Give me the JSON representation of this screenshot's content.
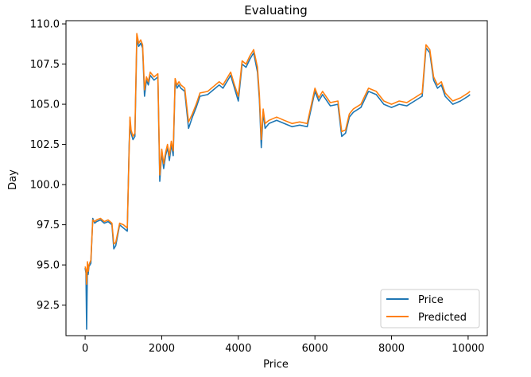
{
  "chart_data": {
    "type": "line",
    "title": "Evaluating",
    "xlabel": "Price",
    "ylabel": "Day",
    "xlim": [
      -500,
      10500
    ],
    "ylim": [
      90.6,
      110.2
    ],
    "x_ticks": [
      0,
      2000,
      4000,
      6000,
      8000,
      10000
    ],
    "y_ticks": [
      92.5,
      95.0,
      97.5,
      100.0,
      102.5,
      105.0,
      107.5,
      110.0
    ],
    "x_tick_labels": [
      "0",
      "2000",
      "4000",
      "6000",
      "8000",
      "10000"
    ],
    "y_tick_labels": [
      "92.5",
      "95.0",
      "97.5",
      "100.0",
      "102.5",
      "105.0",
      "107.5",
      "110.0"
    ],
    "grid": false,
    "legend_position": "lower-right",
    "series": [
      {
        "name": "Price",
        "color": "#1f77b4",
        "x": [
          0,
          20,
          40,
          60,
          80,
          100,
          150,
          200,
          250,
          300,
          400,
          500,
          600,
          700,
          750,
          800,
          900,
          1000,
          1100,
          1150,
          1170,
          1200,
          1250,
          1300,
          1350,
          1400,
          1450,
          1500,
          1550,
          1600,
          1650,
          1700,
          1800,
          1900,
          1950,
          2000,
          2050,
          2100,
          2150,
          2200,
          2250,
          2300,
          2350,
          2400,
          2450,
          2500,
          2600,
          2700,
          2800,
          2900,
          3000,
          3200,
          3400,
          3500,
          3600,
          3700,
          3800,
          3900,
          4000,
          4100,
          4200,
          4300,
          4400,
          4500,
          4550,
          4600,
          4650,
          4700,
          4800,
          5000,
          5200,
          5400,
          5600,
          5800,
          6000,
          6100,
          6200,
          6400,
          6600,
          6700,
          6800,
          6900,
          7000,
          7200,
          7400,
          7600,
          7800,
          8000,
          8200,
          8400,
          8600,
          8800,
          8900,
          9000,
          9100,
          9200,
          9300,
          9400,
          9600,
          9800,
          10000,
          10050
        ],
        "values": [
          94.8,
          94.5,
          91.0,
          94.9,
          94.4,
          94.9,
          95.1,
          97.9,
          97.6,
          97.7,
          97.8,
          97.6,
          97.7,
          97.5,
          96.0,
          96.2,
          97.5,
          97.3,
          97.1,
          102.5,
          104.0,
          103.2,
          102.8,
          103.0,
          109.0,
          108.6,
          108.8,
          108.5,
          105.5,
          106.5,
          106.2,
          106.8,
          106.5,
          106.7,
          100.2,
          102.0,
          101.0,
          101.8,
          102.3,
          101.5,
          102.5,
          101.8,
          106.4,
          106.0,
          106.2,
          106.0,
          105.8,
          103.5,
          104.2,
          104.8,
          105.5,
          105.6,
          106.0,
          106.2,
          106.0,
          106.4,
          106.8,
          106.0,
          105.2,
          107.5,
          107.3,
          107.8,
          108.2,
          107.0,
          105.3,
          102.3,
          104.5,
          103.5,
          103.8,
          104.0,
          103.8,
          103.6,
          103.7,
          103.6,
          105.8,
          105.2,
          105.6,
          104.9,
          105.0,
          103.0,
          103.2,
          104.2,
          104.5,
          104.8,
          105.8,
          105.6,
          105.0,
          104.8,
          105.0,
          104.9,
          105.2,
          105.5,
          108.5,
          108.2,
          106.5,
          106.0,
          106.2,
          105.5,
          105.0,
          105.2,
          105.5,
          105.6
        ]
      },
      {
        "name": "Predicted",
        "color": "#ff7f0e",
        "x": [
          0,
          20,
          40,
          60,
          80,
          100,
          150,
          200,
          250,
          300,
          400,
          500,
          600,
          700,
          750,
          800,
          900,
          1000,
          1100,
          1150,
          1170,
          1200,
          1250,
          1300,
          1350,
          1400,
          1450,
          1500,
          1550,
          1600,
          1650,
          1700,
          1800,
          1900,
          1950,
          2000,
          2050,
          2100,
          2150,
          2200,
          2250,
          2300,
          2350,
          2400,
          2450,
          2500,
          2600,
          2700,
          2800,
          2900,
          3000,
          3200,
          3400,
          3500,
          3600,
          3700,
          3800,
          3900,
          4000,
          4100,
          4200,
          4300,
          4400,
          4500,
          4550,
          4600,
          4650,
          4700,
          4800,
          5000,
          5200,
          5400,
          5600,
          5800,
          6000,
          6100,
          6200,
          6400,
          6600,
          6700,
          6800,
          6900,
          7000,
          7200,
          7400,
          7600,
          7800,
          8000,
          8200,
          8400,
          8600,
          8800,
          8900,
          9000,
          9100,
          9200,
          9300,
          9400,
          9600,
          9800,
          10000,
          10050
        ],
        "values": [
          94.9,
          94.7,
          93.8,
          95.2,
          94.6,
          95.0,
          95.3,
          97.8,
          97.7,
          97.8,
          97.9,
          97.7,
          97.8,
          97.6,
          96.3,
          96.4,
          97.6,
          97.5,
          97.3,
          102.2,
          104.2,
          103.4,
          103.0,
          103.2,
          109.4,
          108.8,
          109.0,
          108.7,
          105.9,
          106.7,
          106.4,
          107.0,
          106.7,
          106.9,
          100.6,
          102.2,
          101.3,
          102.0,
          102.5,
          101.8,
          102.7,
          102.1,
          106.6,
          106.2,
          106.4,
          106.2,
          106.0,
          103.9,
          104.4,
          105.0,
          105.7,
          105.8,
          106.2,
          106.4,
          106.2,
          106.6,
          107.0,
          106.2,
          105.5,
          107.7,
          107.5,
          108.0,
          108.4,
          107.3,
          105.6,
          102.8,
          104.7,
          103.8,
          104.0,
          104.2,
          104.0,
          103.8,
          103.9,
          103.8,
          106.0,
          105.4,
          105.8,
          105.1,
          105.2,
          103.3,
          103.4,
          104.4,
          104.7,
          105.0,
          106.0,
          105.8,
          105.2,
          105.0,
          105.2,
          105.1,
          105.4,
          105.7,
          108.7,
          108.4,
          106.7,
          106.2,
          106.4,
          105.7,
          105.2,
          105.4,
          105.7,
          105.8
        ]
      }
    ]
  }
}
